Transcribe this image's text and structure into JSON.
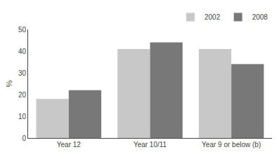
{
  "chart_data": {
    "type": "bar",
    "categories": [
      "Year 12",
      "Year 10/11",
      "Year 9 or below (b)"
    ],
    "series": [
      {
        "name": "2002",
        "color": "#c8c8c8",
        "values": [
          18,
          41,
          41
        ]
      },
      {
        "name": "2008",
        "color": "#787878",
        "values": [
          22,
          44,
          34
        ]
      }
    ],
    "ylabel": "%",
    "ylim": [
      0,
      50
    ],
    "yticks": [
      0,
      10,
      20,
      30,
      40,
      50
    ],
    "grid": false,
    "legend": "upper right"
  }
}
